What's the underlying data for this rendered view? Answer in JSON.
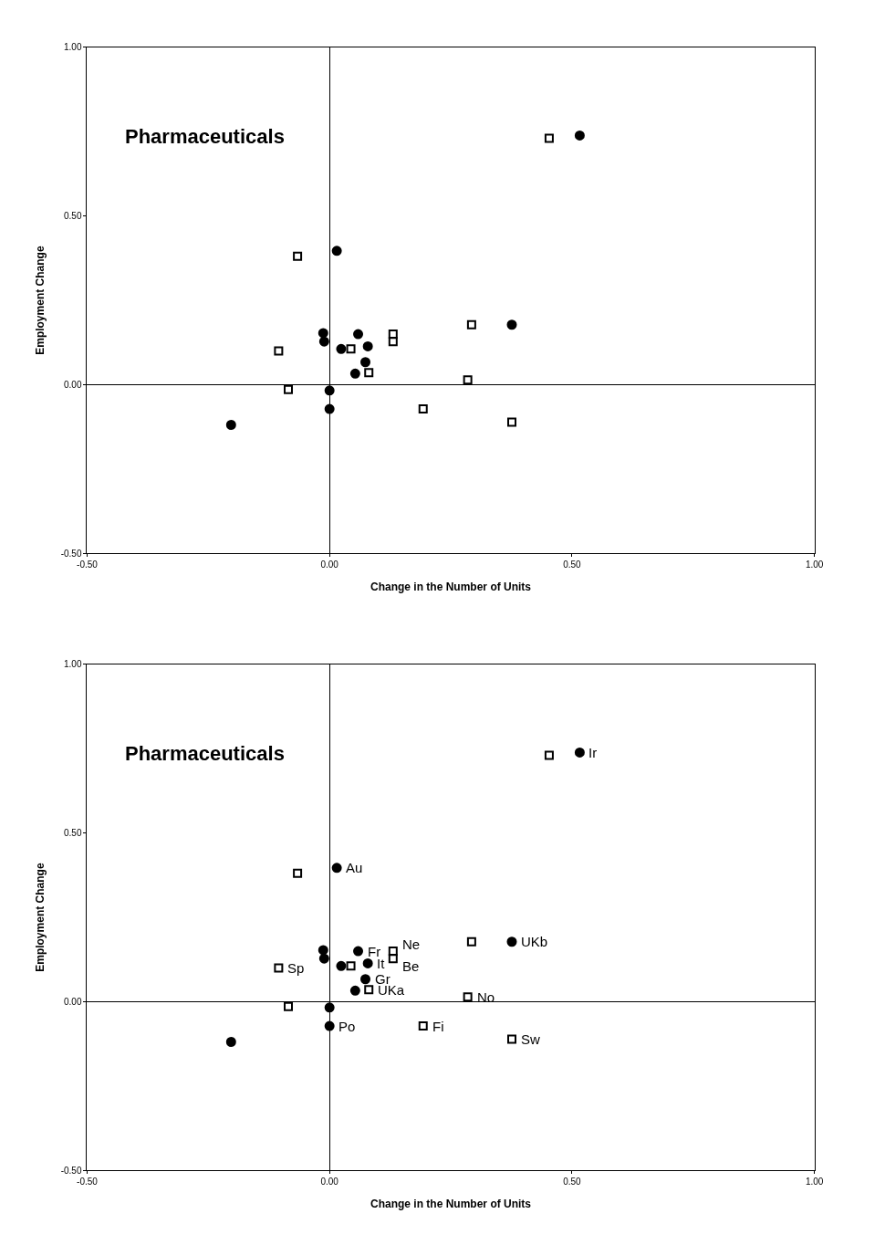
{
  "chart_data": [
    {
      "type": "scatter",
      "title": "Pharmaceuticals",
      "xlabel": "Change in the Number of Units",
      "ylabel": "Employment Change",
      "xlim": [
        -0.5,
        1.0
      ],
      "ylim": [
        -0.5,
        1.0
      ],
      "xticks": [
        {
          "value": -0.5,
          "label": "-0.50"
        },
        {
          "value": 0,
          "label": "0.00"
        },
        {
          "value": 0.5,
          "label": "0.50"
        },
        {
          "value": 1.0,
          "label": "1.00"
        }
      ],
      "yticks": [
        {
          "value": -0.5,
          "label": "-0.50"
        },
        {
          "value": 0,
          "label": "0.00"
        },
        {
          "value": 0.5,
          "label": "0.50"
        },
        {
          "value": 1.0,
          "label": "1.00"
        }
      ],
      "series": [
        {
          "color": "#000000",
          "marker": "circle",
          "x": [
            0.516,
            0.015,
            -0.013,
            -0.011,
            0.024,
            0.059,
            0.079,
            0.074,
            0.053,
            0.0,
            0.0,
            -0.203,
            0.376
          ],
          "values": [
            0.739,
            0.397,
            0.153,
            0.128,
            0.106,
            0.15,
            0.114,
            0.067,
            0.033,
            -0.017,
            -0.072,
            -0.119,
            0.178
          ]
        },
        {
          "color": "#000000",
          "marker": "square",
          "x": [
            0.453,
            -0.066,
            -0.105,
            -0.085,
            0.044,
            0.081,
            0.131,
            0.131,
            0.293,
            0.285,
            0.193,
            0.376
          ],
          "values": [
            0.731,
            0.381,
            0.1,
            -0.014,
            0.106,
            0.036,
            0.15,
            0.128,
            0.178,
            0.014,
            -0.072,
            -0.111
          ]
        }
      ]
    },
    {
      "type": "scatter",
      "title": "Pharmaceuticals",
      "xlabel": "Change in the Number of Units",
      "ylabel": "Employment Change",
      "xlim": [
        -0.5,
        1.0
      ],
      "ylim": [
        -0.5,
        1.0
      ],
      "xticks": [
        {
          "value": -0.5,
          "label": "-0.50"
        },
        {
          "value": 0,
          "label": "0.00"
        },
        {
          "value": 0.5,
          "label": "0.50"
        },
        {
          "value": 1.0,
          "label": "1.00"
        }
      ],
      "yticks": [
        {
          "value": -0.5,
          "label": "-0.50"
        },
        {
          "value": 0,
          "label": "0.00"
        },
        {
          "value": 0.5,
          "label": "0.50"
        },
        {
          "value": 1.0,
          "label": "1.00"
        }
      ],
      "series": [
        {
          "color": "#000000",
          "marker": "circle",
          "x": [
            0.516,
            0.015,
            -0.013,
            -0.011,
            0.024,
            0.059,
            0.079,
            0.074,
            0.053,
            0.0,
            0.0,
            -0.203,
            0.376
          ],
          "values": [
            0.739,
            0.397,
            0.153,
            0.128,
            0.106,
            0.15,
            0.114,
            0.067,
            0.033,
            -0.017,
            -0.072,
            -0.119,
            0.178
          ]
        },
        {
          "color": "#000000",
          "marker": "square",
          "x": [
            0.453,
            -0.066,
            -0.105,
            -0.085,
            0.044,
            0.081,
            0.131,
            0.131,
            0.293,
            0.285,
            0.193,
            0.376
          ],
          "values": [
            0.731,
            0.381,
            0.1,
            -0.014,
            0.106,
            0.036,
            0.15,
            0.128,
            0.178,
            0.014,
            -0.072,
            -0.111
          ]
        }
      ],
      "annotations": [
        {
          "text": "Ir",
          "x": 0.516,
          "y": 0.739
        },
        {
          "text": "Au",
          "x": 0.015,
          "y": 0.397
        },
        {
          "text": "Fr",
          "x": 0.059,
          "y": 0.15
        },
        {
          "text": "Ne",
          "x": 0.131,
          "y": 0.15
        },
        {
          "text": "Be",
          "x": 0.131,
          "y": 0.128
        },
        {
          "text": "UKb",
          "x": 0.376,
          "y": 0.178
        },
        {
          "text": "Sp",
          "x": -0.105,
          "y": 0.1
        },
        {
          "text": "It",
          "x": 0.079,
          "y": 0.114
        },
        {
          "text": "Gr",
          "x": 0.074,
          "y": 0.067
        },
        {
          "text": "UKa",
          "x": 0.081,
          "y": 0.036
        },
        {
          "text": "No",
          "x": 0.285,
          "y": 0.014
        },
        {
          "text": "Po",
          "x": 0.0,
          "y": -0.072
        },
        {
          "text": "Fi",
          "x": 0.193,
          "y": -0.072
        },
        {
          "text": "Sw",
          "x": 0.376,
          "y": -0.111
        }
      ]
    }
  ]
}
